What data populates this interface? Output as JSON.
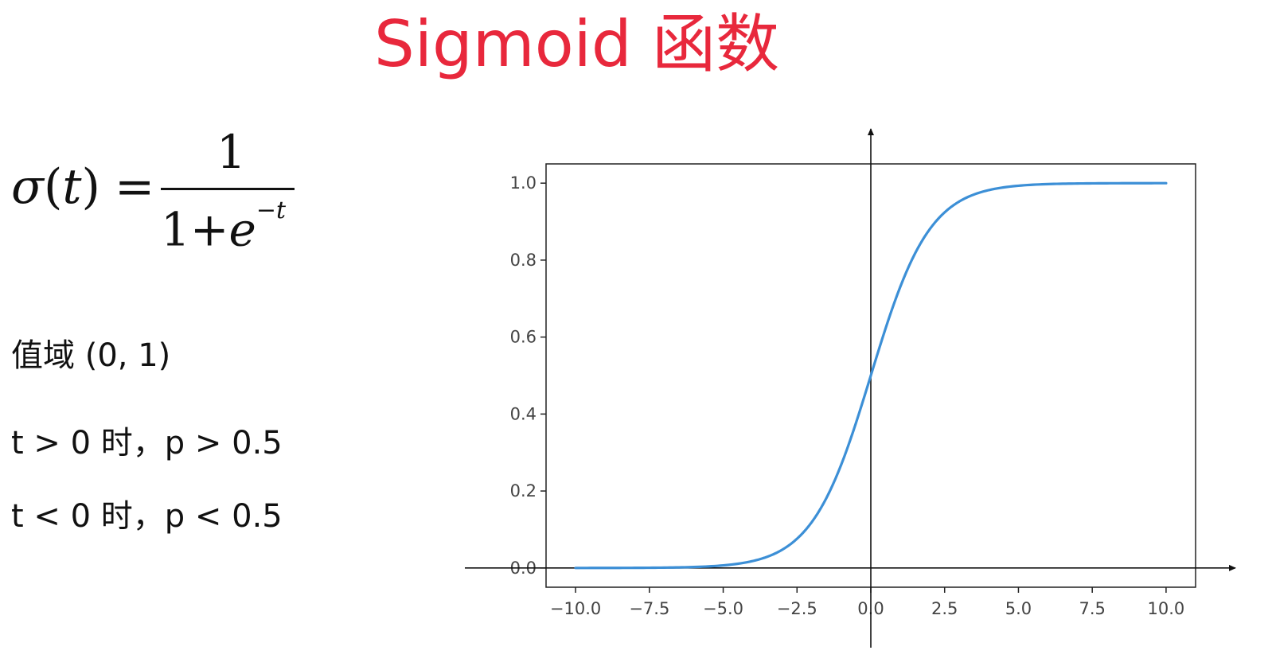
{
  "title": "Sigmoid 函数",
  "formula": {
    "sigma": "σ",
    "open": "(",
    "t": "t",
    "close": ")",
    "equals": "=",
    "numerator": "1",
    "denominator_base": "1+",
    "denominator_e": "e",
    "denominator_exp": "−t"
  },
  "notes": {
    "range": "值域 (0, 1)",
    "pos": "t > 0 时，p > 0.5",
    "neg": "t < 0 时，p < 0.5"
  },
  "chart_data": {
    "type": "line",
    "xlim": [
      -11,
      11
    ],
    "ylim": [
      -0.05,
      1.05
    ],
    "xticks": [
      -10.0,
      -7.5,
      -5.0,
      -2.5,
      0.0,
      2.5,
      5.0,
      7.5,
      10.0
    ],
    "xtick_labels": [
      "−10.0",
      "−7.5",
      "−5.0",
      "−2.5",
      "0.0",
      "2.5",
      "5.0",
      "7.5",
      "10.0"
    ],
    "yticks": [
      0.0,
      0.2,
      0.4,
      0.6,
      0.8,
      1.0
    ],
    "ytick_labels": [
      "0.0",
      "0.2",
      "0.4",
      "0.6",
      "0.8",
      "1.0"
    ],
    "series": [
      {
        "color": "#3c8fd6",
        "function": "1/(1+exp(-t))",
        "x": [
          -10,
          -9,
          -8,
          -7,
          -6,
          -5,
          -4,
          -3,
          -2,
          -1.5,
          -1,
          -0.5,
          0,
          0.5,
          1,
          1.5,
          2,
          3,
          4,
          5,
          6,
          7,
          8,
          9,
          10
        ],
        "y": [
          4.54e-05,
          0.000123,
          0.000335,
          0.000911,
          0.00247,
          0.00669,
          0.018,
          0.0474,
          0.119,
          0.182,
          0.269,
          0.378,
          0.5,
          0.622,
          0.731,
          0.818,
          0.881,
          0.953,
          0.982,
          0.993,
          0.998,
          0.999,
          0.9997,
          0.9999,
          1.0
        ]
      }
    ],
    "grid": false,
    "axes_through_origin": true
  }
}
